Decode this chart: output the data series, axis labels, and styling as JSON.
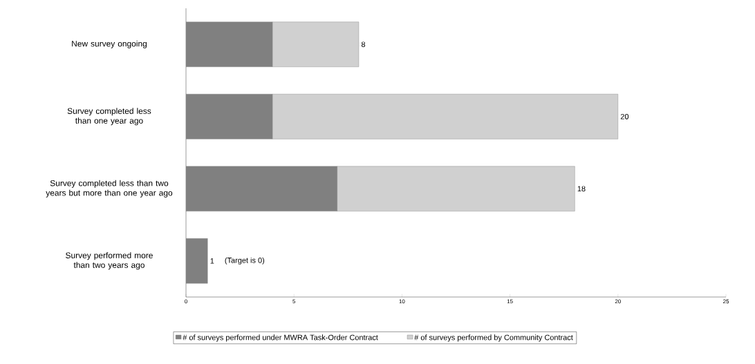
{
  "chart_data": {
    "type": "bar",
    "orientation": "horizontal",
    "stacked": true,
    "categories": [
      "New survey ongoing",
      "Survey completed less than one year ago",
      "Survey completed less than two years but more than one year ago",
      "Survey performed more than two years ago"
    ],
    "series": [
      {
        "name": "# of surveys performed under MWRA Task-Order Contract",
        "color": "#808080",
        "values": [
          4,
          4,
          7,
          1
        ]
      },
      {
        "name": "# of surveys performed by Community Contract",
        "color": "#d0d0d0",
        "values": [
          4,
          16,
          11,
          0
        ]
      }
    ],
    "xlim": [
      0,
      25
    ],
    "xticks": [
      0,
      5,
      10,
      15,
      20,
      25
    ],
    "totals": [
      "8",
      "20",
      "18",
      "1"
    ],
    "annotations": [
      "(Target is 0)"
    ],
    "legend": "bottom",
    "grid": false
  }
}
